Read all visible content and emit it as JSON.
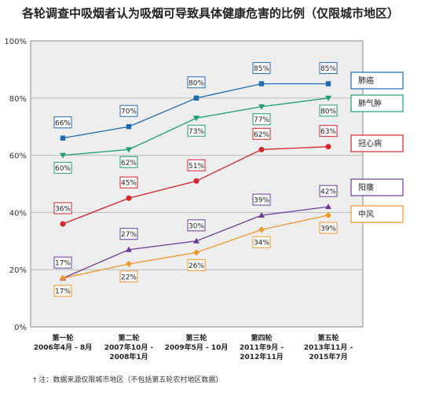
{
  "title": "各轮调查中吸烟者认为吸烟可导致具体健康危害的比例（仅限城市地区）",
  "footnote": "† 注：数据来源仅限城市地区（不包括第五轮农村地区数据）",
  "chart_data": {
    "type": "line",
    "title": "各轮调查中吸烟者认为吸烟可导致具体健康危害的比例（仅限城市地区）",
    "categories": [
      [
        "第一轮",
        "2006年4月 - 8月"
      ],
      [
        "第二轮",
        "2007年10月 -",
        "2008年1月"
      ],
      [
        "第三轮",
        "2009年5月 - 10月"
      ],
      [
        "第四轮",
        "2011年9月 -",
        "2012年11月"
      ],
      [
        "第五轮",
        "2013年11月 -",
        "2015年7月"
      ]
    ],
    "ylim": [
      0,
      100
    ],
    "yticks": [
      "0%",
      "20%",
      "40%",
      "60%",
      "80%",
      "100%"
    ],
    "grid": "horizontal",
    "legend_position": "right",
    "series": [
      {
        "name": "肺癌",
        "values": [
          66,
          70,
          80,
          85,
          85
        ],
        "labels": [
          "66%",
          "70%",
          "80%",
          "85%",
          "85%"
        ],
        "color": "#1f6bb0",
        "marker": "square",
        "label_pos": "above"
      },
      {
        "name": "肺气肿",
        "values": [
          60,
          62,
          73,
          77,
          80
        ],
        "labels": [
          "60%",
          "62%",
          "73%",
          "77%",
          "80%"
        ],
        "color": "#1fa06a",
        "marker": "triangle-down",
        "label_pos": "below"
      },
      {
        "name": "冠心病",
        "values": [
          36,
          45,
          51,
          62,
          63
        ],
        "labels": [
          "36%",
          "45%",
          "51%",
          "62%",
          "63%"
        ],
        "color": "#d6232c",
        "marker": "circle",
        "label_pos": "above"
      },
      {
        "name": "阳痿",
        "values": [
          17,
          27,
          30,
          39,
          42
        ],
        "labels": [
          "17%",
          "27%",
          "30%",
          "39%",
          "42%"
        ],
        "color": "#6a3c96",
        "marker": "triangle-up",
        "label_pos": "above"
      },
      {
        "name": "中风",
        "values": [
          17,
          22,
          26,
          34,
          39
        ],
        "labels": [
          "17%",
          "22%",
          "26%",
          "34%",
          "39%"
        ],
        "color": "#f0962b",
        "marker": "diamond",
        "label_pos": "below"
      }
    ]
  }
}
